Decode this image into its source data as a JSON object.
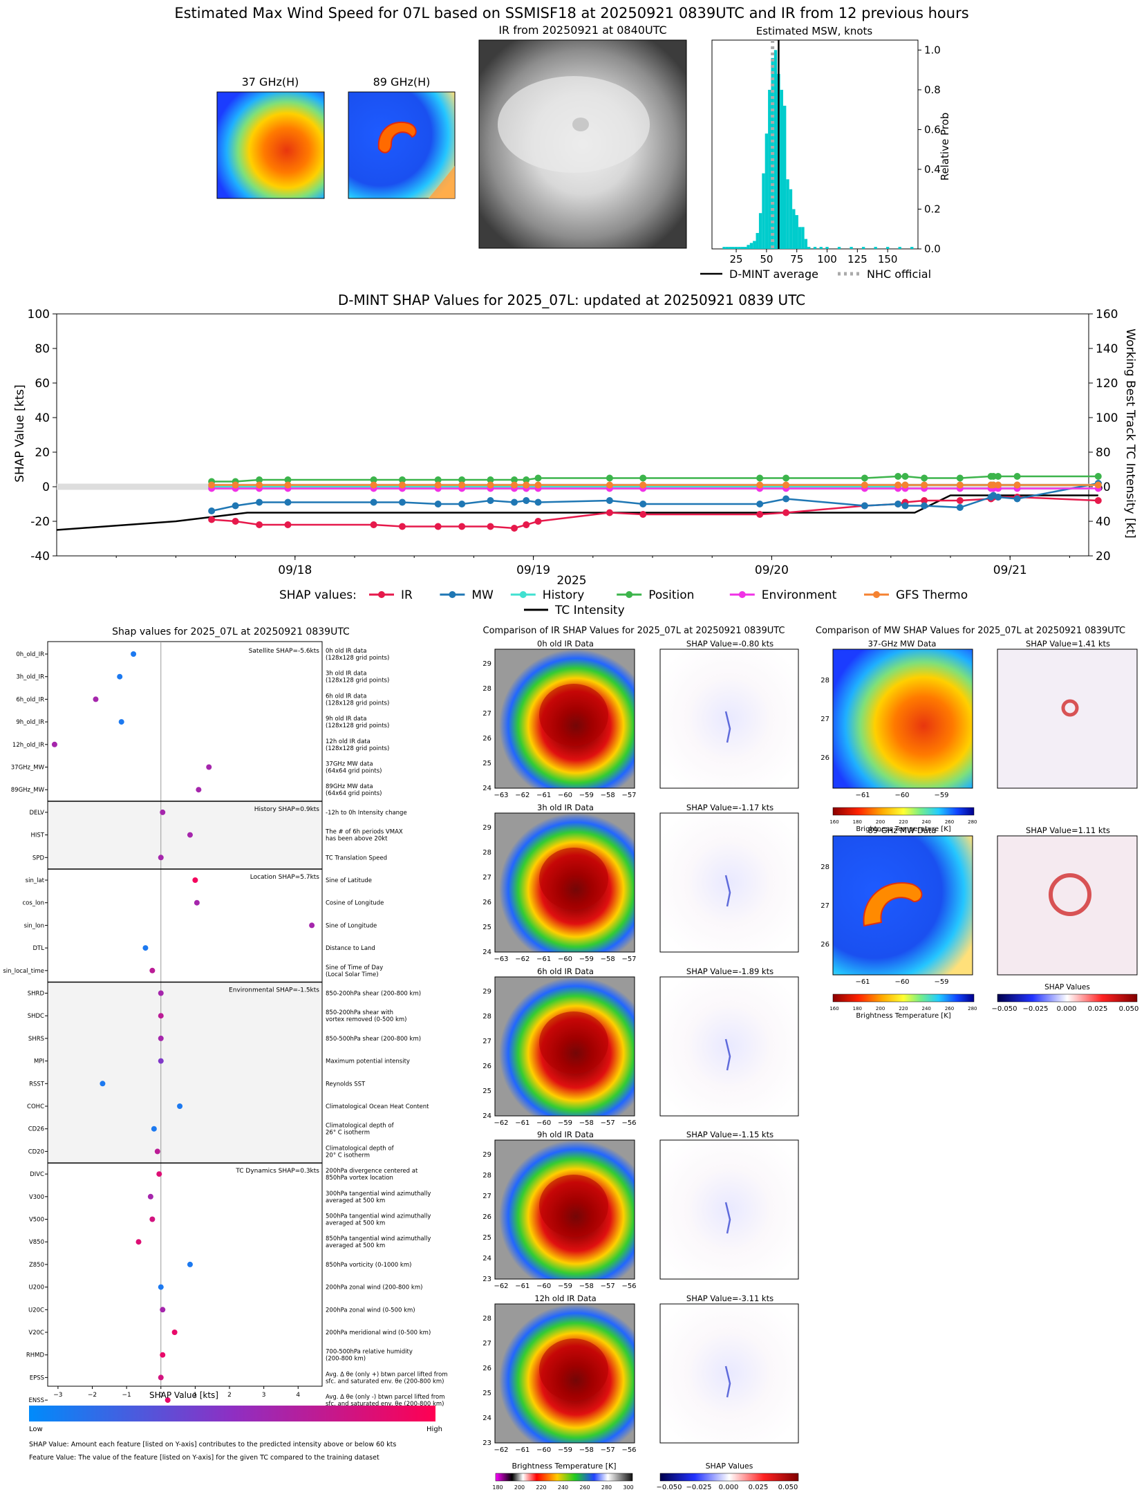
{
  "header": {
    "title": "Estimated Max Wind Speed for 07L based on SSMISF18 at 20250921 0839UTC and IR from 12 previous hours",
    "mw37_title": "37 GHz(H)",
    "mw89_title": "89 GHz(H)",
    "ir_title": "IR from 20250921 at 0840UTC",
    "hist_title": "Estimated MSW, knots",
    "hist_ylabel": "Relative Prob",
    "legend_dmint": "D-MINT average",
    "legend_nhc": "NHC official"
  },
  "shap_ts": {
    "title": "D-MINT SHAP Values for 2025_07L: updated at 20250921 0839 UTC",
    "ylabel_left": "SHAP Value [kts]",
    "ylabel_right": "Working Best Track TC Intensity [kt]",
    "xlabel": "2025",
    "legend_prefix": "SHAP values:",
    "legend_tc": "TC Intensity"
  },
  "shap_panel": {
    "title": "Shap values for 2025_07L at 20250921 0839UTC",
    "xlabel": "SHAP Value [kts]",
    "colorbar_low": "Low",
    "colorbar_high": "High",
    "footnote1": "SHAP Value: Amount each feature [listed on Y-axis] contributes to the predicted intensity above or below 60 kts",
    "footnote2": "Feature Value: The value of the feature [listed on Y-axis] for the given TC compared to the training dataset",
    "groups": [
      {
        "label": "Satellite SHAP=-5.6kts"
      },
      {
        "label": "History SHAP=0.9kts"
      },
      {
        "label": "Location SHAP=5.7kts"
      },
      {
        "label": "Environmental SHAP=-1.5kts"
      },
      {
        "label": "TC Dynamics SHAP=0.3kts"
      }
    ]
  },
  "ir_comp": {
    "title": "Comparison of IR SHAP Values for 2025_07L at 20250921 0839UTC",
    "cbar_label": "Brightness Temperature [K]",
    "cbar_ticks": [
      "180",
      "200",
      "220",
      "240",
      "260",
      "280",
      "300"
    ],
    "shap_cbar_label": "SHAP Values",
    "shap_cbar_ticks": [
      "−0.050",
      "−0.025",
      "0.000",
      "0.025",
      "0.050"
    ],
    "rows": [
      {
        "label": "0h old IR Data",
        "shap": "SHAP Value=-0.80 kts",
        "yticks": [
          "29",
          "28",
          "27",
          "26",
          "25",
          "24"
        ],
        "xticks": [
          "−63",
          "−62",
          "−61",
          "−60",
          "−59",
          "−58",
          "−57"
        ]
      },
      {
        "label": "3h old IR Data",
        "shap": "SHAP Value=-1.17 kts",
        "yticks": [
          "29",
          "28",
          "27",
          "26",
          "25",
          "24"
        ],
        "xticks": [
          "−63",
          "−62",
          "−61",
          "−60",
          "−59",
          "−58",
          "−57"
        ]
      },
      {
        "label": "6h old IR Data",
        "shap": "SHAP Value=-1.89 kts",
        "yticks": [
          "29",
          "28",
          "27",
          "26",
          "25",
          "24"
        ],
        "xticks": [
          "−62",
          "−61",
          "−60",
          "−59",
          "−58",
          "−57",
          "−56"
        ]
      },
      {
        "label": "9h old IR Data",
        "shap": "SHAP Value=-1.15 kts",
        "yticks": [
          "29",
          "28",
          "27",
          "26",
          "25",
          "24",
          "23"
        ],
        "xticks": [
          "−62",
          "−61",
          "−60",
          "−59",
          "−58",
          "−57",
          "−56"
        ]
      },
      {
        "label": "12h old IR Data",
        "shap": "SHAP Value=-3.11 kts",
        "yticks": [
          "28",
          "27",
          "26",
          "25",
          "24",
          "23"
        ],
        "xticks": [
          "−62",
          "−61",
          "−60",
          "−59",
          "−58",
          "−57",
          "−56"
        ]
      }
    ]
  },
  "mw_comp": {
    "title": "Comparison of MW SHAP Values for 2025_07L at 20250921 0839UTC",
    "cbar_label": "Brightness Temperature [K]",
    "cbar_ticks": [
      "160",
      "180",
      "200",
      "220",
      "240",
      "260",
      "280"
    ],
    "shap_cbar_label": "SHAP Values",
    "shap_cbar_ticks": [
      "−0.050",
      "−0.025",
      "0.000",
      "0.025",
      "0.050"
    ],
    "rows": [
      {
        "label": "37-GHz MW Data",
        "shap": "SHAP Value=1.41 kts",
        "yticks": [
          "28",
          "27",
          "26"
        ],
        "xticks": [
          "−61",
          "−60",
          "−59"
        ]
      },
      {
        "label": "89-GHz MW Data",
        "shap": "SHAP Value=1.11 kts",
        "yticks": [
          "28",
          "27",
          "26"
        ],
        "xticks": [
          "−61",
          "−60",
          "−59"
        ]
      }
    ]
  },
  "colors": {
    "ir": "#e6194b",
    "mw": "#1f77b4",
    "history": "#40e0d0",
    "position": "#3cb44b",
    "environment": "#f032e6",
    "gfs": "#f58231",
    "tc": "#000000",
    "hist_bar": "#00cccc"
  },
  "chart_data": [
    {
      "type": "bar",
      "title": "Estimated MSW, knots",
      "ylabel": "Relative Prob",
      "xlim": [
        5,
        175
      ],
      "ylim": [
        0,
        1.05
      ],
      "xticks": [
        25,
        50,
        75,
        100,
        125,
        150
      ],
      "yticks": [
        0.0,
        0.2,
        0.4,
        0.6,
        0.8,
        1.0
      ],
      "bin_width": 2.5,
      "bins": [
        {
          "x": 15,
          "y": 0.01
        },
        {
          "x": 17.5,
          "y": 0.01
        },
        {
          "x": 20,
          "y": 0.01
        },
        {
          "x": 22.5,
          "y": 0.01
        },
        {
          "x": 25,
          "y": 0.01
        },
        {
          "x": 27.5,
          "y": 0.01
        },
        {
          "x": 30,
          "y": 0.01
        },
        {
          "x": 32.5,
          "y": 0.01
        },
        {
          "x": 35,
          "y": 0.02
        },
        {
          "x": 37.5,
          "y": 0.03
        },
        {
          "x": 40,
          "y": 0.04
        },
        {
          "x": 42.5,
          "y": 0.08
        },
        {
          "x": 45,
          "y": 0.18
        },
        {
          "x": 47.5,
          "y": 0.38
        },
        {
          "x": 50,
          "y": 0.58
        },
        {
          "x": 52.5,
          "y": 0.8
        },
        {
          "x": 55,
          "y": 0.96
        },
        {
          "x": 57.5,
          "y": 1.0
        },
        {
          "x": 60,
          "y": 0.88
        },
        {
          "x": 62.5,
          "y": 0.8
        },
        {
          "x": 65,
          "y": 0.72
        },
        {
          "x": 67.5,
          "y": 0.35
        },
        {
          "x": 70,
          "y": 0.3
        },
        {
          "x": 72.5,
          "y": 0.2
        },
        {
          "x": 75,
          "y": 0.17
        },
        {
          "x": 77.5,
          "y": 0.11
        },
        {
          "x": 80,
          "y": 0.11
        },
        {
          "x": 82.5,
          "y": 0.05
        },
        {
          "x": 85,
          "y": 0.01
        },
        {
          "x": 90,
          "y": 0.01
        },
        {
          "x": 95,
          "y": 0.01
        },
        {
          "x": 100,
          "y": 0.01
        },
        {
          "x": 110,
          "y": 0.01
        },
        {
          "x": 120,
          "y": 0.01
        },
        {
          "x": 130,
          "y": 0.01
        },
        {
          "x": 140,
          "y": 0.01
        },
        {
          "x": 150,
          "y": 0.01
        },
        {
          "x": 160,
          "y": 0.01
        },
        {
          "x": 170,
          "y": 0.01
        }
      ],
      "dmint_average": 60,
      "nhc_official": 55
    },
    {
      "type": "line",
      "title": "D-MINT SHAP Values for 2025_07L: updated at 20250921 0839 UTC",
      "xlabel": "2025",
      "ylabel": "SHAP Value [kts]",
      "y2label": "Working Best Track TC Intensity [kt]",
      "xlim_days_since_0917": [
        0.0,
        4.33
      ],
      "x_tick_labels": [
        "09/18",
        "09/19",
        "09/20",
        "09/21"
      ],
      "ylim": [
        -40,
        100
      ],
      "y2lim": [
        20,
        160
      ],
      "x": [
        0.65,
        0.75,
        0.85,
        0.97,
        1.33,
        1.45,
        1.6,
        1.7,
        1.82,
        1.92,
        1.97,
        2.02,
        2.32,
        2.46,
        2.95,
        3.06,
        3.39,
        3.53,
        3.56,
        3.64,
        3.79,
        3.92,
        3.93,
        3.95,
        4.03,
        4.37
      ],
      "series": [
        {
          "name": "IR",
          "values": [
            -19,
            -20,
            -22,
            -22,
            -22,
            -23,
            -23,
            -23,
            -23,
            -24,
            -22,
            -20,
            -15,
            -16,
            -16,
            -15,
            -11,
            -10,
            -9,
            -8,
            -8,
            -7,
            -6,
            -6,
            -6,
            -8
          ]
        },
        {
          "name": "MW",
          "values": [
            -14,
            -11,
            -9,
            -9,
            -9,
            -9,
            -10,
            -10,
            -8,
            -9,
            -8,
            -9,
            -8,
            -10,
            -10,
            -7,
            -11,
            -10,
            -11,
            -11,
            -12,
            -6,
            -5,
            -6,
            -7,
            2
          ]
        },
        {
          "name": "History",
          "values": [
            0,
            0,
            0,
            0,
            0,
            0,
            0,
            0,
            0,
            0,
            0,
            0,
            0,
            0,
            0,
            0,
            0,
            0,
            1,
            1,
            1,
            1,
            1,
            1,
            1,
            1
          ]
        },
        {
          "name": "Position",
          "values": [
            3,
            3,
            4,
            4,
            4,
            4,
            4,
            4,
            4,
            4,
            4,
            5,
            5,
            5,
            5,
            5,
            5,
            6,
            6,
            5,
            5,
            6,
            6,
            6,
            6,
            6
          ]
        },
        {
          "name": "Environment",
          "values": [
            -1,
            -1,
            -1,
            -1,
            -1,
            -1,
            -1,
            -1,
            -1,
            -1,
            -1,
            -1,
            -1,
            -1,
            -1,
            -1,
            -1,
            -1,
            -1,
            -1,
            -1,
            -1,
            -1,
            -1,
            -1,
            -1
          ]
        },
        {
          "name": "GFS Thermo",
          "values": [
            1,
            1,
            1,
            1,
            1,
            1,
            1,
            1,
            1,
            1,
            1,
            1,
            1,
            1,
            1,
            1,
            1,
            1,
            1,
            1,
            1,
            1,
            1,
            1,
            1,
            1
          ]
        }
      ],
      "tc_intensity": {
        "x": [
          0.0,
          0.5,
          0.8,
          1.25,
          1.5,
          2.0,
          2.5,
          3.0,
          3.25,
          3.5,
          3.6,
          3.75,
          3.95,
          4.05,
          4.37
        ],
        "values": [
          35,
          40,
          45,
          45,
          45,
          45,
          45,
          45,
          45,
          45,
          45,
          55,
          55,
          55,
          55
        ]
      }
    },
    {
      "type": "scatter",
      "title": "Shap values for 2025_07L at 20250921 0839UTC",
      "xlabel": "SHAP Value [kts]",
      "xlim": [
        -3.3,
        4.7
      ],
      "xticks": [
        -3,
        -2,
        -1,
        0,
        1,
        2,
        3,
        4
      ],
      "features": [
        {
          "name": "0h_old_IR",
          "shap": -0.8,
          "fv": 0.1,
          "desc": "0h old IR data\n(128x128 grid points)"
        },
        {
          "name": "3h_old_IR",
          "shap": -1.2,
          "fv": 0.1,
          "desc": "3h old IR data\n(128x128 grid points)"
        },
        {
          "name": "6h_old_IR",
          "shap": -1.9,
          "fv": 0.6,
          "desc": "6h old IR data\n(128x128 grid points)"
        },
        {
          "name": "9h_old_IR",
          "shap": -1.15,
          "fv": 0.1,
          "desc": "9h old IR data\n(128x128 grid points)"
        },
        {
          "name": "12h_old_IR",
          "shap": -3.1,
          "fv": 0.6,
          "desc": "12h old IR data\n(128x128 grid points)"
        },
        {
          "name": "37GHz_MW",
          "shap": 1.4,
          "fv": 0.6,
          "desc": "37GHz MW data\n(64x64 grid points)"
        },
        {
          "name": "89GHz_MW",
          "shap": 1.1,
          "fv": 0.6,
          "desc": "89GHz MW data\n(64x64 grid points)"
        },
        {
          "name": "DELV",
          "shap": 0.05,
          "fv": 0.6,
          "desc": "-12h to 0h Intensity change"
        },
        {
          "name": "HIST",
          "shap": 0.85,
          "fv": 0.6,
          "desc": "The # of 6h periods VMAX\nhas been above 20kt"
        },
        {
          "name": "SPD",
          "shap": 0.0,
          "fv": 0.6,
          "desc": "TC Translation Speed"
        },
        {
          "name": "sin_lat",
          "shap": 1.0,
          "fv": 0.95,
          "desc": "Sine of Latitude"
        },
        {
          "name": "cos_lon",
          "shap": 1.05,
          "fv": 0.6,
          "desc": "Cosine of Longitude"
        },
        {
          "name": "sin_lon",
          "shap": 4.4,
          "fv": 0.6,
          "desc": "Sine of Longitude"
        },
        {
          "name": "DTL",
          "shap": -0.45,
          "fv": 0.1,
          "desc": "Distance to Land"
        },
        {
          "name": "sin_local_time",
          "shap": -0.25,
          "fv": 0.7,
          "desc": "Sine of Time of Day\n(Local Solar Time)"
        },
        {
          "name": "SHRD",
          "shap": 0.0,
          "fv": 0.6,
          "desc": "850-200hPa shear (200-800 km)"
        },
        {
          "name": "SHDC",
          "shap": 0.0,
          "fv": 0.7,
          "desc": "850-200hPa shear with\nvortex removed (0-500 km)"
        },
        {
          "name": "SHRS",
          "shap": 0.0,
          "fv": 0.6,
          "desc": "850-500hPa shear (200-800 km)"
        },
        {
          "name": "MPI",
          "shap": 0.0,
          "fv": 0.45,
          "desc": "Maximum potential intensity"
        },
        {
          "name": "RSST",
          "shap": -1.7,
          "fv": 0.1,
          "desc": "Reynolds SST"
        },
        {
          "name": "COHC",
          "shap": 0.55,
          "fv": 0.1,
          "desc": "Climatological Ocean Heat Content"
        },
        {
          "name": "CD26",
          "shap": -0.2,
          "fv": 0.1,
          "desc": "Climatological depth of\n26° C isotherm"
        },
        {
          "name": "CD20",
          "shap": -0.1,
          "fv": 0.7,
          "desc": "Climatological depth of\n20° C isotherm"
        },
        {
          "name": "DIVC",
          "shap": -0.05,
          "fv": 0.85,
          "desc": "200hPa divergence centered at\n850hPa vortex location"
        },
        {
          "name": "V300",
          "shap": -0.3,
          "fv": 0.6,
          "desc": "300hPa tangential wind azimuthally\naveraged at 500 km"
        },
        {
          "name": "V500",
          "shap": -0.25,
          "fv": 0.8,
          "desc": "500hPa tangential wind azimuthally\naveraged at 500 km"
        },
        {
          "name": "V850",
          "shap": -0.65,
          "fv": 0.85,
          "desc": "850hPa tangential wind azimuthally\naveraged at 500 km"
        },
        {
          "name": "Z850",
          "shap": 0.85,
          "fv": 0.1,
          "desc": "850hPa vorticity (0-1000 km)"
        },
        {
          "name": "U200",
          "shap": 0.0,
          "fv": 0.1,
          "desc": "200hPa zonal wind (200-800 km)"
        },
        {
          "name": "U20C",
          "shap": 0.05,
          "fv": 0.6,
          "desc": "200hPa zonal wind (0-500 km)"
        },
        {
          "name": "V20C",
          "shap": 0.4,
          "fv": 0.9,
          "desc": "200hPa meridional wind (0-500 km)"
        },
        {
          "name": "RHMD",
          "shap": 0.05,
          "fv": 0.9,
          "desc": "700-500hPa relative humidity\n(200-800 km)"
        },
        {
          "name": "EPSS",
          "shap": 0.0,
          "fv": 0.8,
          "desc": "Avg. Δ θe (only +) btwn parcel lifted from\nsfc. and saturated env. θe (200-800 km)"
        },
        {
          "name": "ENSS",
          "shap": 0.2,
          "fv": 0.9,
          "desc": "Avg. Δ θe (only -) btwn parcel lifted from\nsfc. and saturated env. θe (200-800 km)"
        }
      ]
    }
  ]
}
